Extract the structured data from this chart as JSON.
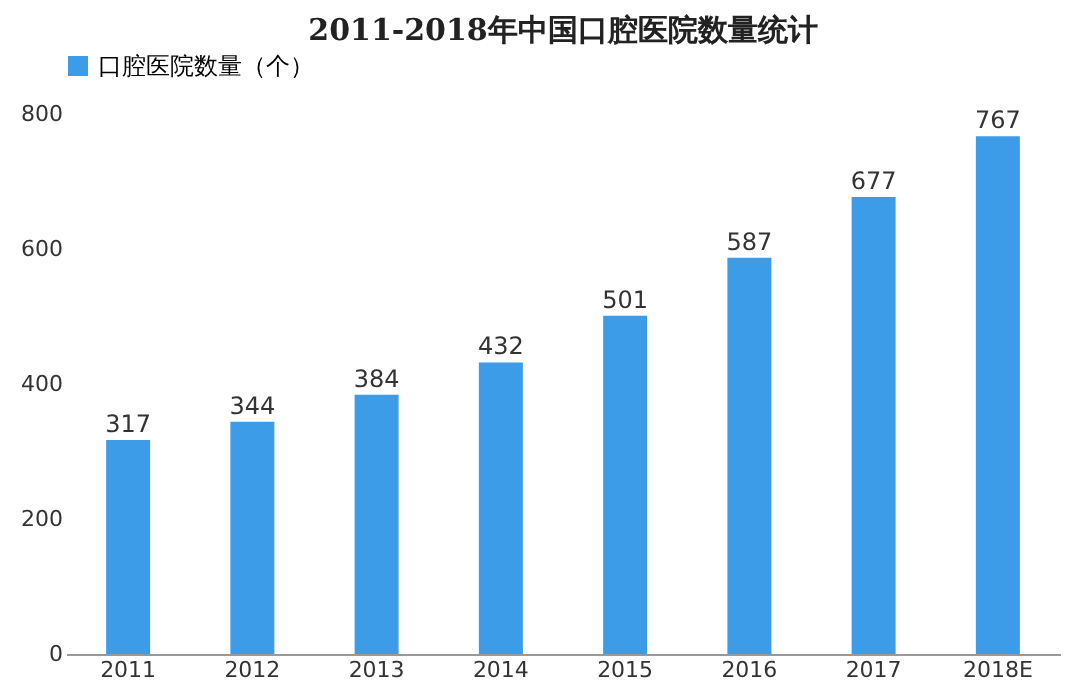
{
  "chart_data": {
    "type": "bar",
    "title": "2011-2018年中国口腔医院数量统计",
    "categories": [
      "2011",
      "2012",
      "2013",
      "2014",
      "2015",
      "2016",
      "2017",
      "2018E"
    ],
    "series": [
      {
        "name": "口腔医院数量（个）",
        "color": "#3d9ce8",
        "values": [
          317,
          344,
          384,
          432,
          501,
          587,
          677,
          767
        ]
      }
    ],
    "ylim": [
      0,
      800
    ],
    "yticks": [
      0,
      200,
      400,
      600,
      800
    ],
    "grid": false,
    "legend": "top",
    "data_labels": true
  }
}
